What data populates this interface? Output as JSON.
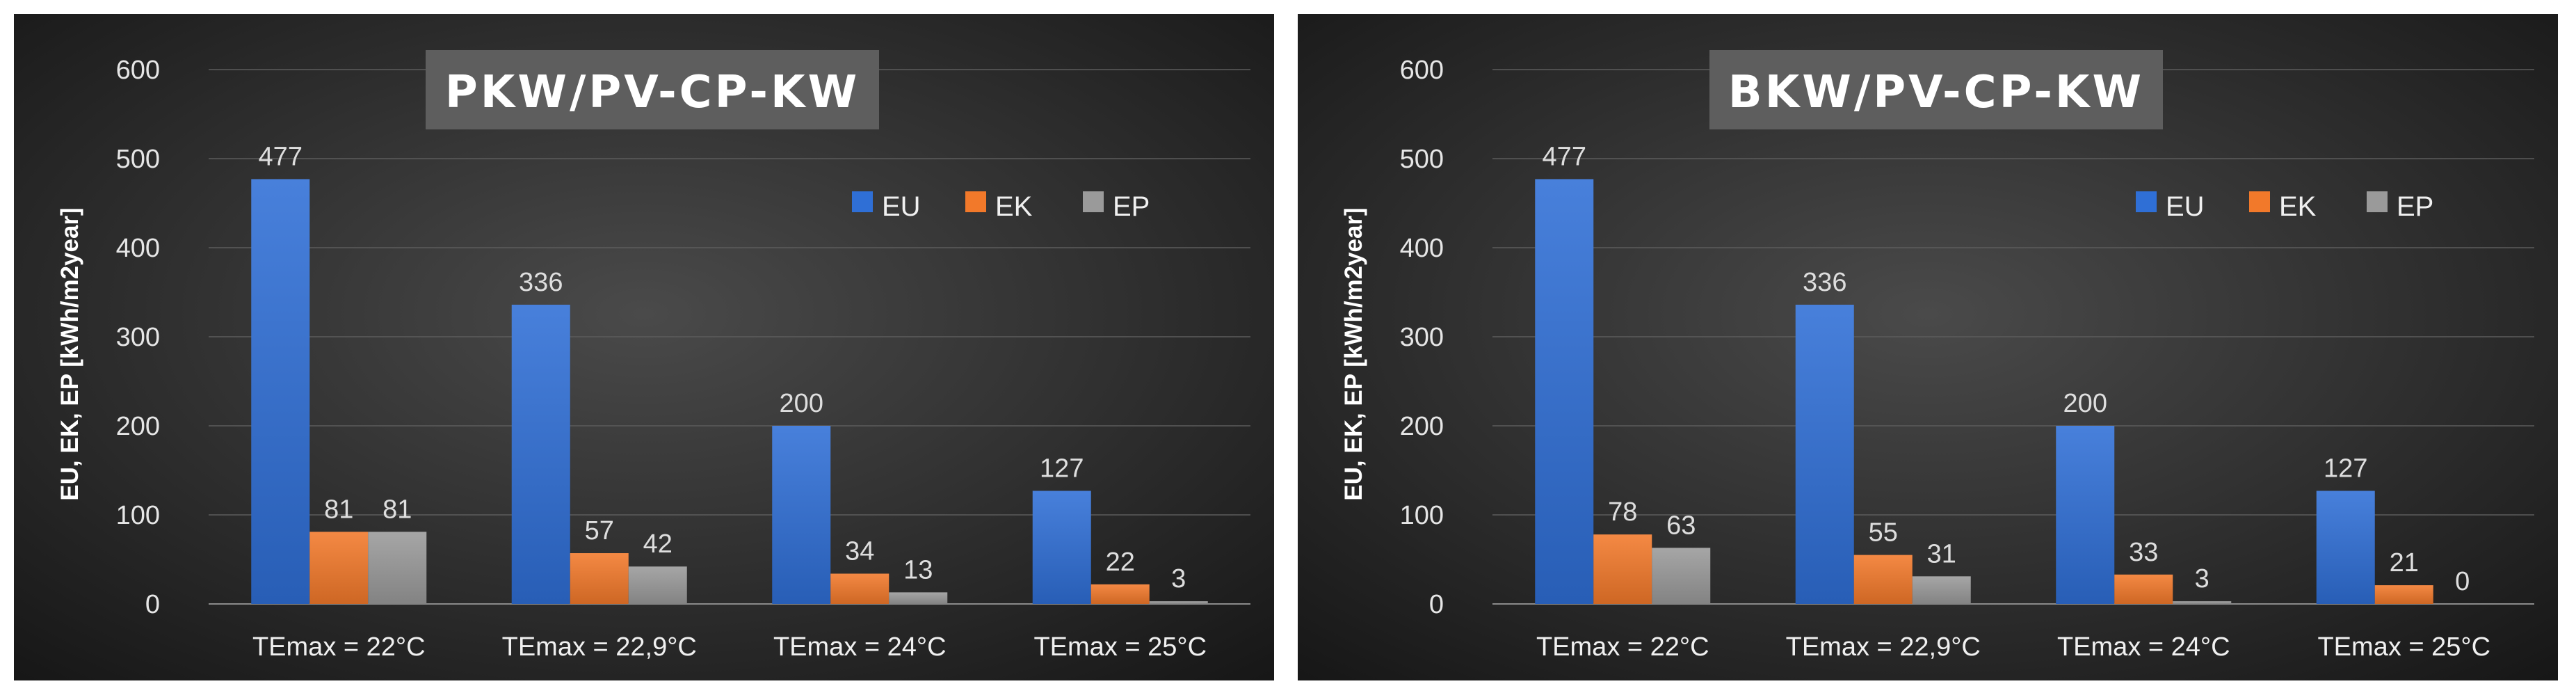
{
  "chart_data": [
    {
      "type": "bar",
      "title": "PKW/PV-CP-KW",
      "ylabel": "EU, EK, EP [kWh/m2year]",
      "xlabel": "",
      "ylim": [
        0,
        600
      ],
      "yticks": [
        0,
        100,
        200,
        300,
        400,
        500,
        600
      ],
      "grid": true,
      "legend_position": "top-right",
      "categories": [
        "TEmax = 22°C",
        "TEmax = 22,9°C",
        "TEmax = 24°C",
        "TEmax = 25°C"
      ],
      "series": [
        {
          "name": "EU",
          "color": "#2f6fd6",
          "values": [
            477,
            336,
            200,
            127
          ]
        },
        {
          "name": "EK",
          "color": "#f2792a",
          "values": [
            81,
            57,
            34,
            22
          ]
        },
        {
          "name": "EP",
          "color": "#9a9a9a",
          "values": [
            81,
            42,
            13,
            3
          ]
        }
      ]
    },
    {
      "type": "bar",
      "title": "BKW/PV-CP-KW",
      "ylabel": "EU, EK, EP [kWh/m2year]",
      "xlabel": "",
      "ylim": [
        0,
        600
      ],
      "yticks": [
        0,
        100,
        200,
        300,
        400,
        500,
        600
      ],
      "grid": true,
      "legend_position": "top-right",
      "categories": [
        "TEmax = 22°C",
        "TEmax = 22,9°C",
        "TEmax = 24°C",
        "TEmax = 25°C"
      ],
      "series": [
        {
          "name": "EU",
          "color": "#2f6fd6",
          "values": [
            477,
            336,
            200,
            127
          ]
        },
        {
          "name": "EK",
          "color": "#f2792a",
          "values": [
            78,
            55,
            33,
            21
          ]
        },
        {
          "name": "EP",
          "color": "#9a9a9a",
          "values": [
            63,
            31,
            3,
            0
          ]
        }
      ]
    }
  ]
}
